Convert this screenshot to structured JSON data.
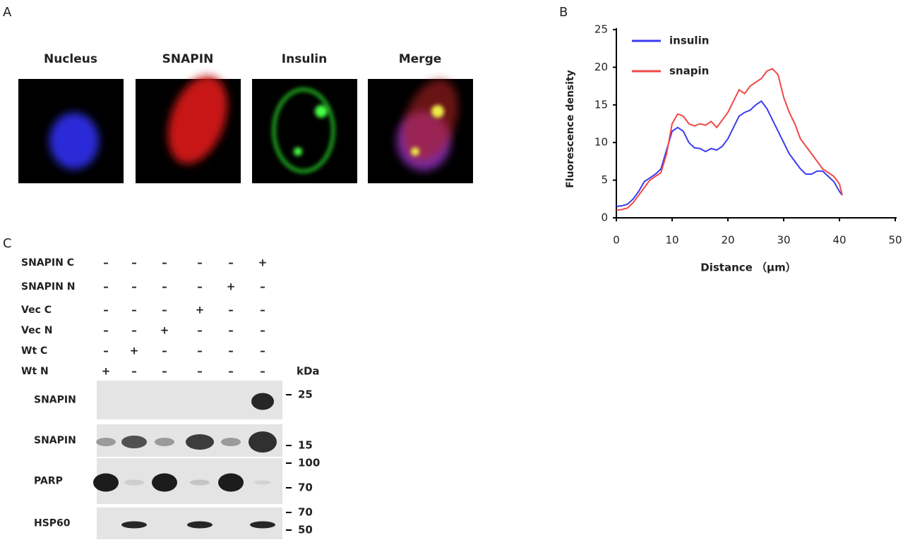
{
  "panel_labels": [
    "A",
    "B",
    "C"
  ],
  "panel_a": {
    "titles": [
      "Nucleus",
      "SNAPIN",
      "Insulin",
      "Merge"
    ]
  },
  "chart_data": {
    "type": "line",
    "xlabel": "Distance （μm）",
    "ylabel": "Fluorescence density",
    "x": [
      0,
      1,
      2,
      3,
      4,
      5,
      6,
      7,
      8,
      9,
      10,
      11,
      12,
      13,
      14,
      15,
      16,
      17,
      18,
      19,
      20,
      21,
      22,
      23,
      24,
      25,
      26,
      27,
      28,
      29,
      30,
      31,
      32,
      33,
      34,
      35,
      36,
      37,
      38,
      39,
      40,
      40.5
    ],
    "series": [
      {
        "name": "insulin",
        "color": "#3b3bf0",
        "values": [
          1.5,
          1.6,
          1.8,
          2.5,
          3.5,
          4.8,
          5.3,
          5.8,
          6.5,
          9,
          11.5,
          12,
          11.5,
          10,
          9.3,
          9.2,
          8.8,
          9.2,
          9,
          9.5,
          10.5,
          12,
          13.5,
          14,
          14.3,
          15,
          15.5,
          14.5,
          13,
          11.5,
          10,
          8.5,
          7.5,
          6.5,
          5.8,
          5.8,
          6.2,
          6.2,
          5.5,
          4.8,
          3.5,
          3
        ]
      },
      {
        "name": "snapin",
        "color": "#f04848",
        "values": [
          1,
          1.1,
          1.3,
          2,
          3,
          4,
          5,
          5.5,
          6,
          8.5,
          12.5,
          13.8,
          13.5,
          12.5,
          12.2,
          12.5,
          12.3,
          12.8,
          12,
          13,
          14,
          15.5,
          17,
          16.5,
          17.5,
          18,
          18.5,
          19.5,
          19.8,
          19,
          16,
          14,
          12.5,
          10.5,
          9.5,
          8.5,
          7.5,
          6.5,
          6,
          5.5,
          4.5,
          3
        ]
      }
    ],
    "xlim": [
      0,
      50
    ],
    "ylim": [
      0,
      25
    ],
    "xticks": [
      0,
      10,
      20,
      30,
      40,
      50
    ],
    "yticks": [
      0,
      5,
      10,
      15,
      20,
      25
    ],
    "legend": "upper left"
  },
  "panel_c": {
    "kda": "kDa",
    "conditions": [
      {
        "label": "SNAPIN  C",
        "signs": [
          "–",
          "–",
          "–",
          "–",
          "–",
          "+"
        ]
      },
      {
        "label": "SNAPIN N",
        "signs": [
          "–",
          "–",
          "–",
          "–",
          "+",
          "–"
        ]
      },
      {
        "label": "Vec C",
        "signs": [
          "–",
          "–",
          "–",
          "+",
          "–",
          "–"
        ]
      },
      {
        "label": "Vec N",
        "signs": [
          "–",
          "–",
          "+",
          "–",
          "–",
          "–"
        ]
      },
      {
        "label": "Wt C",
        "signs": [
          "–",
          "+",
          "–",
          "–",
          "–",
          "–"
        ]
      },
      {
        "label": "Wt N",
        "signs": [
          "+",
          "–",
          "–",
          "–",
          "–",
          "–"
        ]
      }
    ],
    "blots": [
      {
        "label": "SNAPIN",
        "markers": [
          25
        ]
      },
      {
        "label": "SNAPIN",
        "markers": [
          15
        ]
      },
      {
        "label": "PARP",
        "markers": [
          100,
          70
        ]
      },
      {
        "label": "HSP60",
        "markers": [
          70,
          50
        ]
      }
    ]
  }
}
